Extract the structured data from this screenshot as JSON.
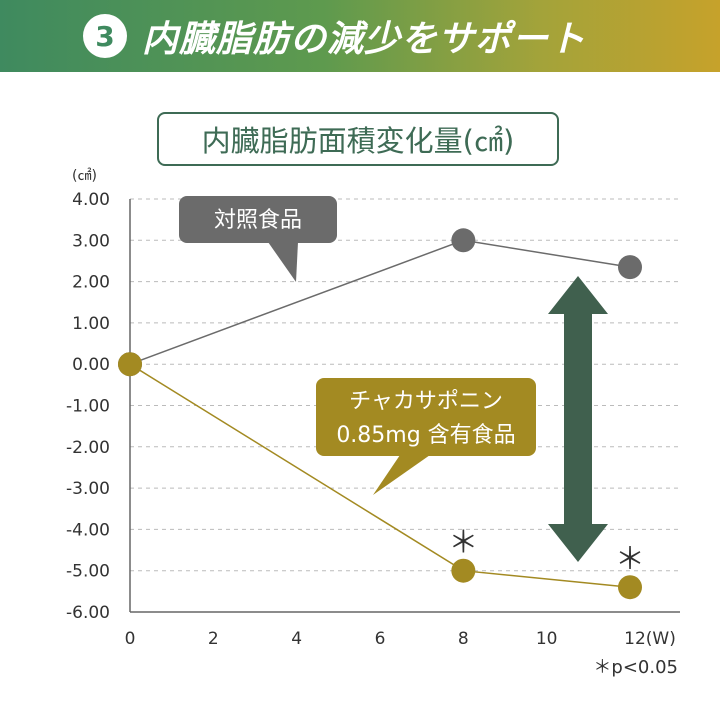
{
  "header": {
    "number": "3",
    "title": "内臓脂肪の減少をサポート"
  },
  "colors": {
    "control": "#6b6b6b",
    "test": "#a38a22",
    "arrow": "#40604e",
    "grid": "#bbbbbb"
  },
  "chart_data": {
    "type": "line",
    "title": "内臓脂肪面積変化量(㎠)",
    "ylabel": "(㎠)",
    "xlabel": "",
    "x_unit": "(W)",
    "ylim": [
      -6,
      4
    ],
    "xlim": [
      0,
      12
    ],
    "x_ticks": [
      0,
      2,
      4,
      6,
      8,
      10,
      12
    ],
    "y_ticks": [
      "4.00",
      "3.00",
      "2.00",
      "1.00",
      "0.00",
      "-1.00",
      "-2.00",
      "-3.00",
      "-4.00",
      "-5.00",
      "-6.00"
    ],
    "grid": "horizontal dashed",
    "series": [
      {
        "name": "対照食品",
        "x": [
          0,
          8,
          12
        ],
        "values": [
          0,
          3.0,
          2.35
        ]
      },
      {
        "name": "チャカサポニン 0.85mg 含有食品",
        "name_lines": [
          "チャカサポニン",
          "0.85mg 含有食品"
        ],
        "x": [
          0,
          8,
          12
        ],
        "values": [
          0,
          -5.0,
          -5.4
        ]
      }
    ],
    "annotations": {
      "significance_marks": [
        {
          "text": "＊",
          "x": 8,
          "y": -5.0
        },
        {
          "text": "＊",
          "x": 12,
          "y": -5.4
        }
      ],
      "note": "＊p<0.05"
    }
  }
}
